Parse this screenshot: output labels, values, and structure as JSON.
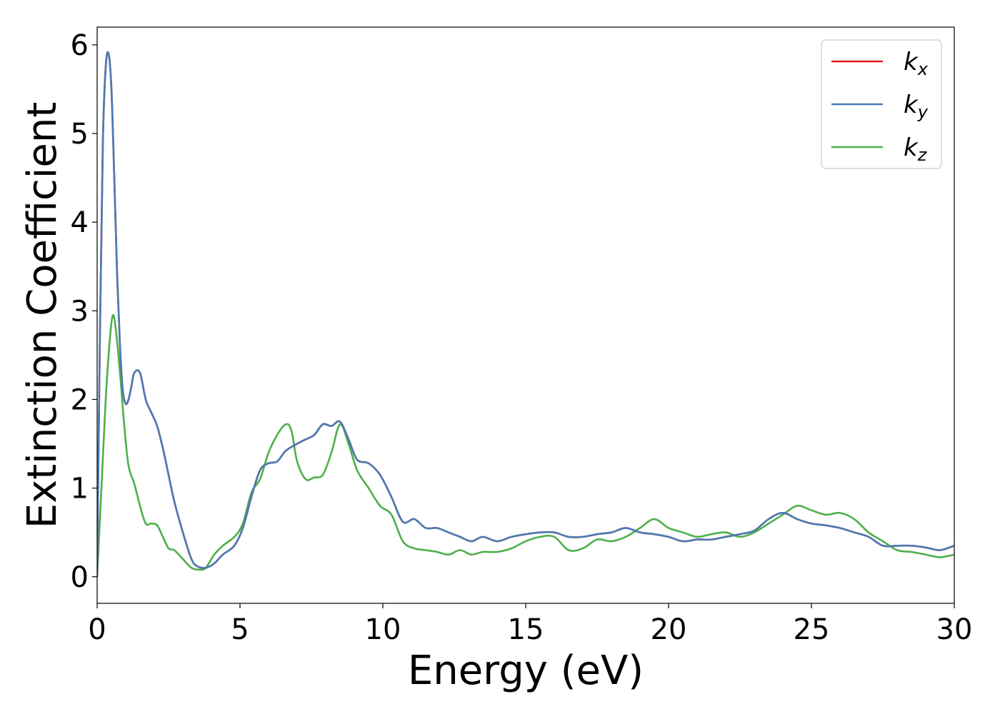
{
  "chart_data": {
    "type": "line",
    "xlabel": "Energy (eV)",
    "ylabel": "Extinction Coefficient",
    "xlim": [
      0,
      30
    ],
    "ylim": [
      -0.3,
      6.2
    ],
    "xticks": [
      0,
      5,
      10,
      15,
      20,
      25,
      30
    ],
    "yticks": [
      0,
      1,
      2,
      3,
      4,
      5,
      6
    ],
    "grid": false,
    "legend": "top-right",
    "series": [
      {
        "name": "k",
        "subscript": "x",
        "color": "#e41a1c",
        "x": [
          0,
          0.1,
          0.2,
          0.3,
          0.4,
          0.5,
          0.6,
          0.7,
          0.8,
          0.9,
          1.0,
          1.1,
          1.2,
          1.3,
          1.5,
          1.7,
          1.9,
          2.1,
          2.3,
          2.5,
          2.7,
          3.0,
          3.3,
          3.5,
          3.8,
          4.1,
          4.4,
          4.8,
          5.1,
          5.4,
          5.7,
          6.0,
          6.3,
          6.6,
          7.0,
          7.3,
          7.6,
          7.9,
          8.2,
          8.5,
          8.8,
          9.1,
          9.5,
          9.9,
          10.3,
          10.7,
          11.1,
          11.5,
          11.9,
          12.3,
          12.7,
          13.1,
          13.5,
          14.0,
          14.5,
          15.0,
          15.5,
          16.0,
          16.5,
          17.0,
          17.5,
          18.0,
          18.5,
          19.0,
          19.5,
          20.0,
          20.5,
          21.0,
          21.5,
          22.0,
          22.5,
          23.0,
          23.5,
          24.0,
          24.5,
          25.0,
          25.5,
          26.0,
          26.5,
          27.0,
          27.5,
          28.0,
          28.5,
          29.0,
          29.5,
          30.0
        ],
        "y": [
          0,
          2.8,
          4.9,
          5.75,
          5.9,
          5.5,
          4.5,
          3.4,
          2.6,
          2.1,
          1.95,
          2.0,
          2.15,
          2.3,
          2.3,
          2.0,
          1.85,
          1.7,
          1.45,
          1.15,
          0.85,
          0.5,
          0.2,
          0.12,
          0.1,
          0.15,
          0.25,
          0.35,
          0.55,
          0.9,
          1.2,
          1.28,
          1.3,
          1.42,
          1.5,
          1.55,
          1.6,
          1.72,
          1.7,
          1.75,
          1.55,
          1.32,
          1.28,
          1.15,
          0.9,
          0.62,
          0.65,
          0.55,
          0.55,
          0.5,
          0.45,
          0.4,
          0.45,
          0.4,
          0.45,
          0.48,
          0.5,
          0.5,
          0.45,
          0.45,
          0.48,
          0.5,
          0.55,
          0.5,
          0.48,
          0.45,
          0.4,
          0.42,
          0.42,
          0.45,
          0.48,
          0.52,
          0.65,
          0.72,
          0.65,
          0.6,
          0.58,
          0.55,
          0.5,
          0.45,
          0.35,
          0.35,
          0.35,
          0.33,
          0.3,
          0.35
        ]
      },
      {
        "name": "k",
        "subscript": "y",
        "color": "#4a7bb5",
        "x": [
          0,
          0.1,
          0.2,
          0.3,
          0.4,
          0.5,
          0.6,
          0.7,
          0.8,
          0.9,
          1.0,
          1.1,
          1.2,
          1.3,
          1.5,
          1.7,
          1.9,
          2.1,
          2.3,
          2.5,
          2.7,
          3.0,
          3.3,
          3.5,
          3.8,
          4.1,
          4.4,
          4.8,
          5.1,
          5.4,
          5.7,
          6.0,
          6.3,
          6.6,
          7.0,
          7.3,
          7.6,
          7.9,
          8.2,
          8.5,
          8.8,
          9.1,
          9.5,
          9.9,
          10.3,
          10.7,
          11.1,
          11.5,
          11.9,
          12.3,
          12.7,
          13.1,
          13.5,
          14.0,
          14.5,
          15.0,
          15.5,
          16.0,
          16.5,
          17.0,
          17.5,
          18.0,
          18.5,
          19.0,
          19.5,
          20.0,
          20.5,
          21.0,
          21.5,
          22.0,
          22.5,
          23.0,
          23.5,
          24.0,
          24.5,
          25.0,
          25.5,
          26.0,
          26.5,
          27.0,
          27.5,
          28.0,
          28.5,
          29.0,
          29.5,
          30.0
        ],
        "y": [
          0,
          2.8,
          4.9,
          5.75,
          5.9,
          5.5,
          4.5,
          3.4,
          2.6,
          2.1,
          1.95,
          2.0,
          2.15,
          2.3,
          2.3,
          2.0,
          1.85,
          1.7,
          1.45,
          1.15,
          0.85,
          0.5,
          0.2,
          0.12,
          0.1,
          0.15,
          0.25,
          0.35,
          0.55,
          0.9,
          1.2,
          1.28,
          1.3,
          1.42,
          1.5,
          1.55,
          1.6,
          1.72,
          1.7,
          1.75,
          1.55,
          1.32,
          1.28,
          1.15,
          0.9,
          0.62,
          0.65,
          0.55,
          0.55,
          0.5,
          0.45,
          0.4,
          0.45,
          0.4,
          0.45,
          0.48,
          0.5,
          0.5,
          0.45,
          0.45,
          0.48,
          0.5,
          0.55,
          0.5,
          0.48,
          0.45,
          0.4,
          0.42,
          0.42,
          0.45,
          0.48,
          0.52,
          0.65,
          0.72,
          0.65,
          0.6,
          0.58,
          0.55,
          0.5,
          0.45,
          0.35,
          0.35,
          0.35,
          0.33,
          0.3,
          0.35
        ]
      },
      {
        "name": "k",
        "subscript": "z",
        "color": "#4daf4a",
        "x": [
          0,
          0.15,
          0.3,
          0.45,
          0.55,
          0.65,
          0.8,
          0.95,
          1.1,
          1.3,
          1.5,
          1.7,
          1.9,
          2.1,
          2.3,
          2.5,
          2.7,
          3.0,
          3.3,
          3.6,
          3.8,
          4.1,
          4.4,
          4.8,
          5.1,
          5.4,
          5.7,
          6.0,
          6.3,
          6.6,
          6.8,
          7.0,
          7.3,
          7.6,
          7.9,
          8.2,
          8.5,
          8.8,
          9.1,
          9.5,
          9.9,
          10.3,
          10.7,
          11.1,
          11.5,
          11.9,
          12.3,
          12.7,
          13.1,
          13.5,
          14.0,
          14.5,
          15.0,
          15.5,
          16.0,
          16.5,
          17.0,
          17.5,
          18.0,
          18.5,
          19.0,
          19.5,
          20.0,
          20.5,
          21.0,
          21.5,
          22.0,
          22.5,
          23.0,
          23.5,
          24.0,
          24.5,
          25.0,
          25.5,
          26.0,
          26.5,
          27.0,
          27.5,
          28.0,
          28.5,
          29.0,
          29.5,
          30.0
        ],
        "y": [
          0,
          1.0,
          2.0,
          2.7,
          2.95,
          2.8,
          2.3,
          1.7,
          1.25,
          1.05,
          0.8,
          0.6,
          0.6,
          0.58,
          0.45,
          0.32,
          0.3,
          0.2,
          0.1,
          0.08,
          0.1,
          0.25,
          0.35,
          0.45,
          0.6,
          0.95,
          1.1,
          1.4,
          1.6,
          1.72,
          1.65,
          1.3,
          1.1,
          1.12,
          1.15,
          1.4,
          1.72,
          1.5,
          1.2,
          1.0,
          0.8,
          0.7,
          0.4,
          0.32,
          0.3,
          0.28,
          0.25,
          0.3,
          0.25,
          0.28,
          0.28,
          0.32,
          0.4,
          0.45,
          0.45,
          0.3,
          0.32,
          0.42,
          0.4,
          0.45,
          0.55,
          0.65,
          0.55,
          0.5,
          0.45,
          0.48,
          0.5,
          0.45,
          0.5,
          0.6,
          0.7,
          0.8,
          0.75,
          0.7,
          0.72,
          0.65,
          0.5,
          0.4,
          0.3,
          0.28,
          0.25,
          0.22,
          0.25
        ]
      }
    ]
  }
}
